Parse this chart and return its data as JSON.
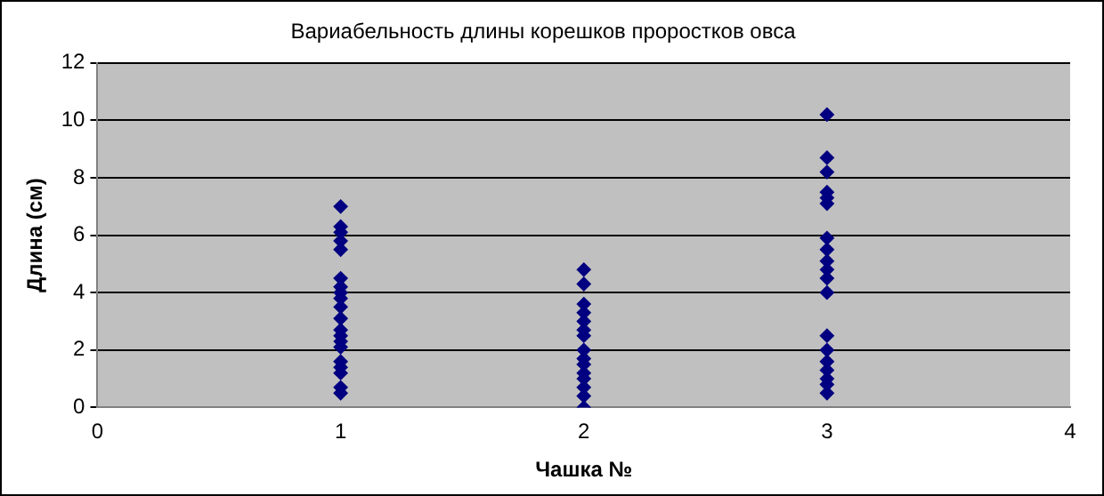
{
  "chart_data": {
    "type": "scatter",
    "title": "Вариабельность длины корешков проростков овса",
    "xlabel": "Чашка №",
    "ylabel": "Длина (см)",
    "series": [
      {
        "color": "#000080",
        "x": [
          1,
          1,
          1,
          1,
          1,
          1,
          1,
          1,
          1,
          1,
          1,
          1,
          1,
          1,
          1,
          1,
          1,
          1,
          1,
          1
        ],
        "values": [
          7.0,
          6.3,
          6.1,
          5.8,
          5.5,
          4.5,
          4.2,
          4.0,
          3.8,
          3.5,
          3.1,
          2.7,
          2.5,
          2.3,
          2.1,
          1.6,
          1.4,
          1.2,
          0.7,
          0.5
        ]
      },
      {
        "color": "#000080",
        "x": [
          2,
          2,
          2,
          2,
          2,
          2,
          2,
          2,
          2,
          2,
          2,
          2,
          2,
          2,
          2
        ],
        "values": [
          4.8,
          4.3,
          3.6,
          3.3,
          3.0,
          2.7,
          2.5,
          2.0,
          1.7,
          1.5,
          1.2,
          1.0,
          0.7,
          0.4,
          0.0
        ]
      },
      {
        "color": "#000080",
        "x": [
          3,
          3,
          3,
          3,
          3,
          3,
          3,
          3,
          3,
          3,
          3,
          3,
          3,
          3,
          3,
          3,
          3,
          3,
          3
        ],
        "values": [
          10.2,
          8.7,
          8.2,
          7.5,
          7.3,
          7.1,
          5.9,
          5.5,
          5.1,
          4.8,
          4.5,
          4.0,
          2.5,
          2.0,
          1.6,
          1.3,
          1.0,
          0.8,
          0.5
        ]
      }
    ],
    "xlim": [
      0,
      4
    ],
    "xticks": [
      0,
      1,
      2,
      3,
      4
    ],
    "ylim": [
      0,
      12
    ],
    "yticks": [
      0,
      2,
      4,
      6,
      8,
      10,
      12
    ],
    "grid": "y",
    "legend": false,
    "marker": "diamond"
  }
}
